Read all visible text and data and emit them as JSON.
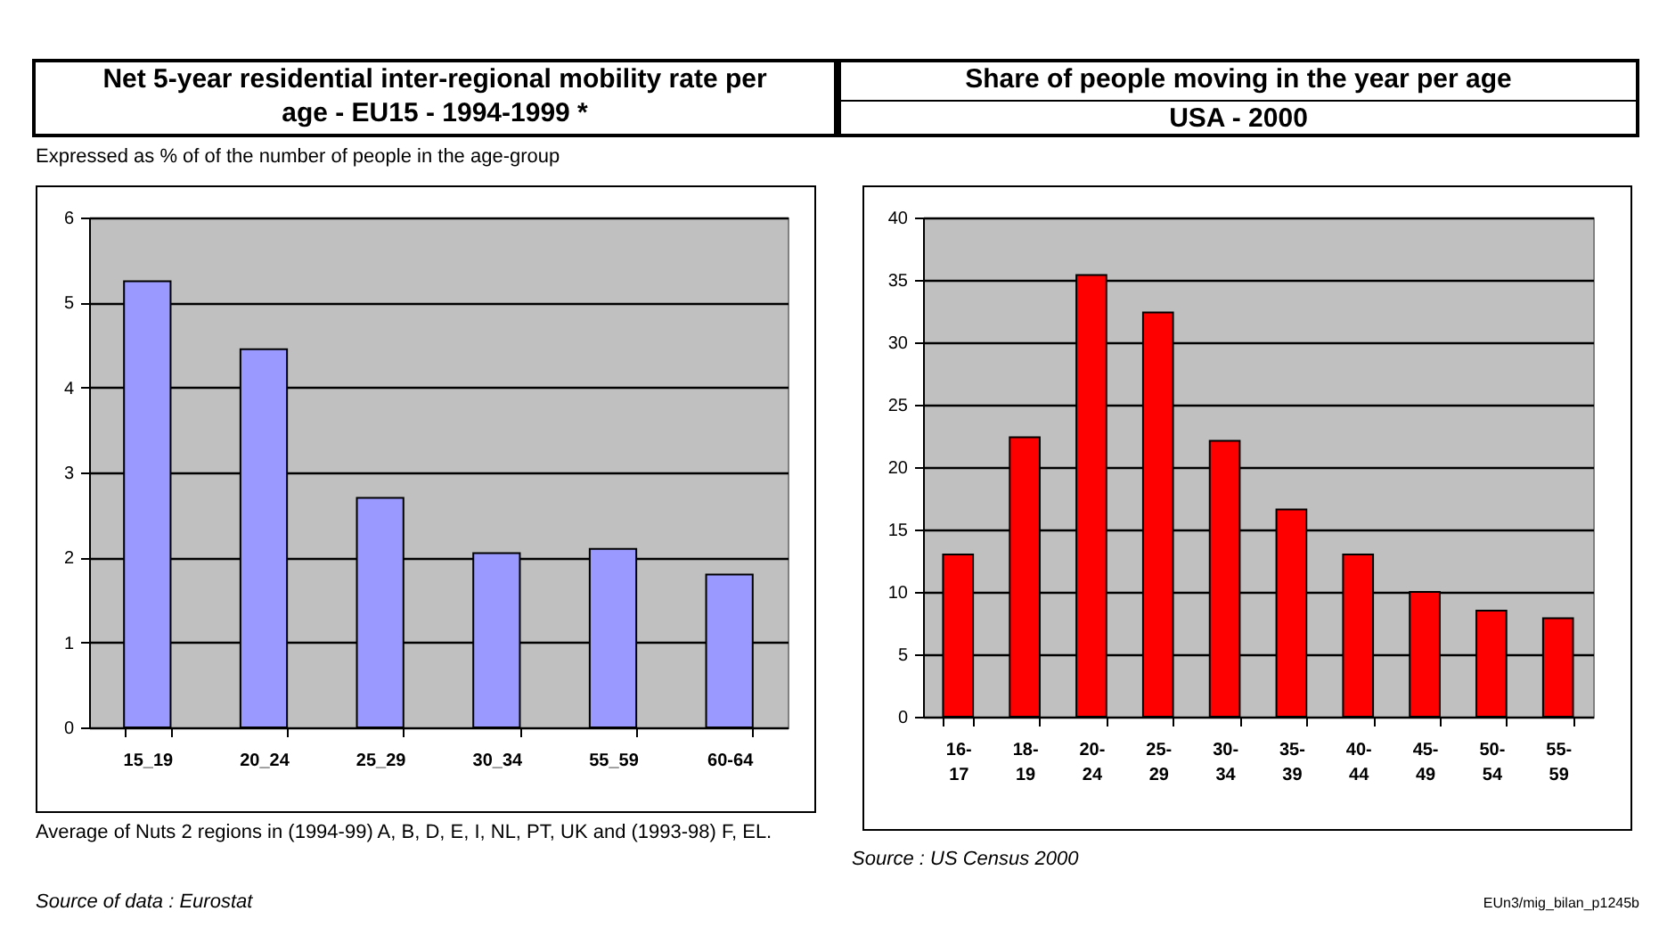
{
  "chart_data": [
    {
      "type": "bar",
      "title": "Net 5-year residential inter-regional mobility rate per age  -  EU15  -  1994-1999 *",
      "subtitle": "Expressed as % of of the number of people in the age-group",
      "categories": [
        "15_19",
        "20_24",
        "25_29",
        "30_34",
        "55_59",
        "60-64"
      ],
      "values": [
        5.25,
        4.45,
        2.7,
        2.05,
        2.1,
        1.8
      ],
      "color": "#9999ff",
      "ylim": [
        0,
        6
      ],
      "yticks": [
        0,
        1,
        2,
        3,
        4,
        5,
        6
      ],
      "grid": "y",
      "annotations": [
        "Average of Nuts 2 regions in (1994-99) A, B, D, E, I, NL, PT, UK and (1993-98) F, EL.",
        "Source of data : Eurostat"
      ]
    },
    {
      "type": "bar",
      "title": "Share of people moving in the year per age",
      "subtitle": "USA  - 2000",
      "categories": [
        "16-17",
        "18-19",
        "20-24",
        "25-29",
        "30-34",
        "35-39",
        "40-44",
        "45-49",
        "50-54",
        "55-59"
      ],
      "values": [
        13,
        22.4,
        35.4,
        32.4,
        22.1,
        16.6,
        13,
        10,
        8.5,
        7.9
      ],
      "color": "#ff0000",
      "ylim": [
        0,
        40
      ],
      "yticks": [
        0,
        5,
        10,
        15,
        20,
        25,
        30,
        35,
        40
      ],
      "grid": "y",
      "annotations": [
        "Source : US Census 2000",
        "EUn3/mig_bilan_p1245b"
      ]
    }
  ]
}
